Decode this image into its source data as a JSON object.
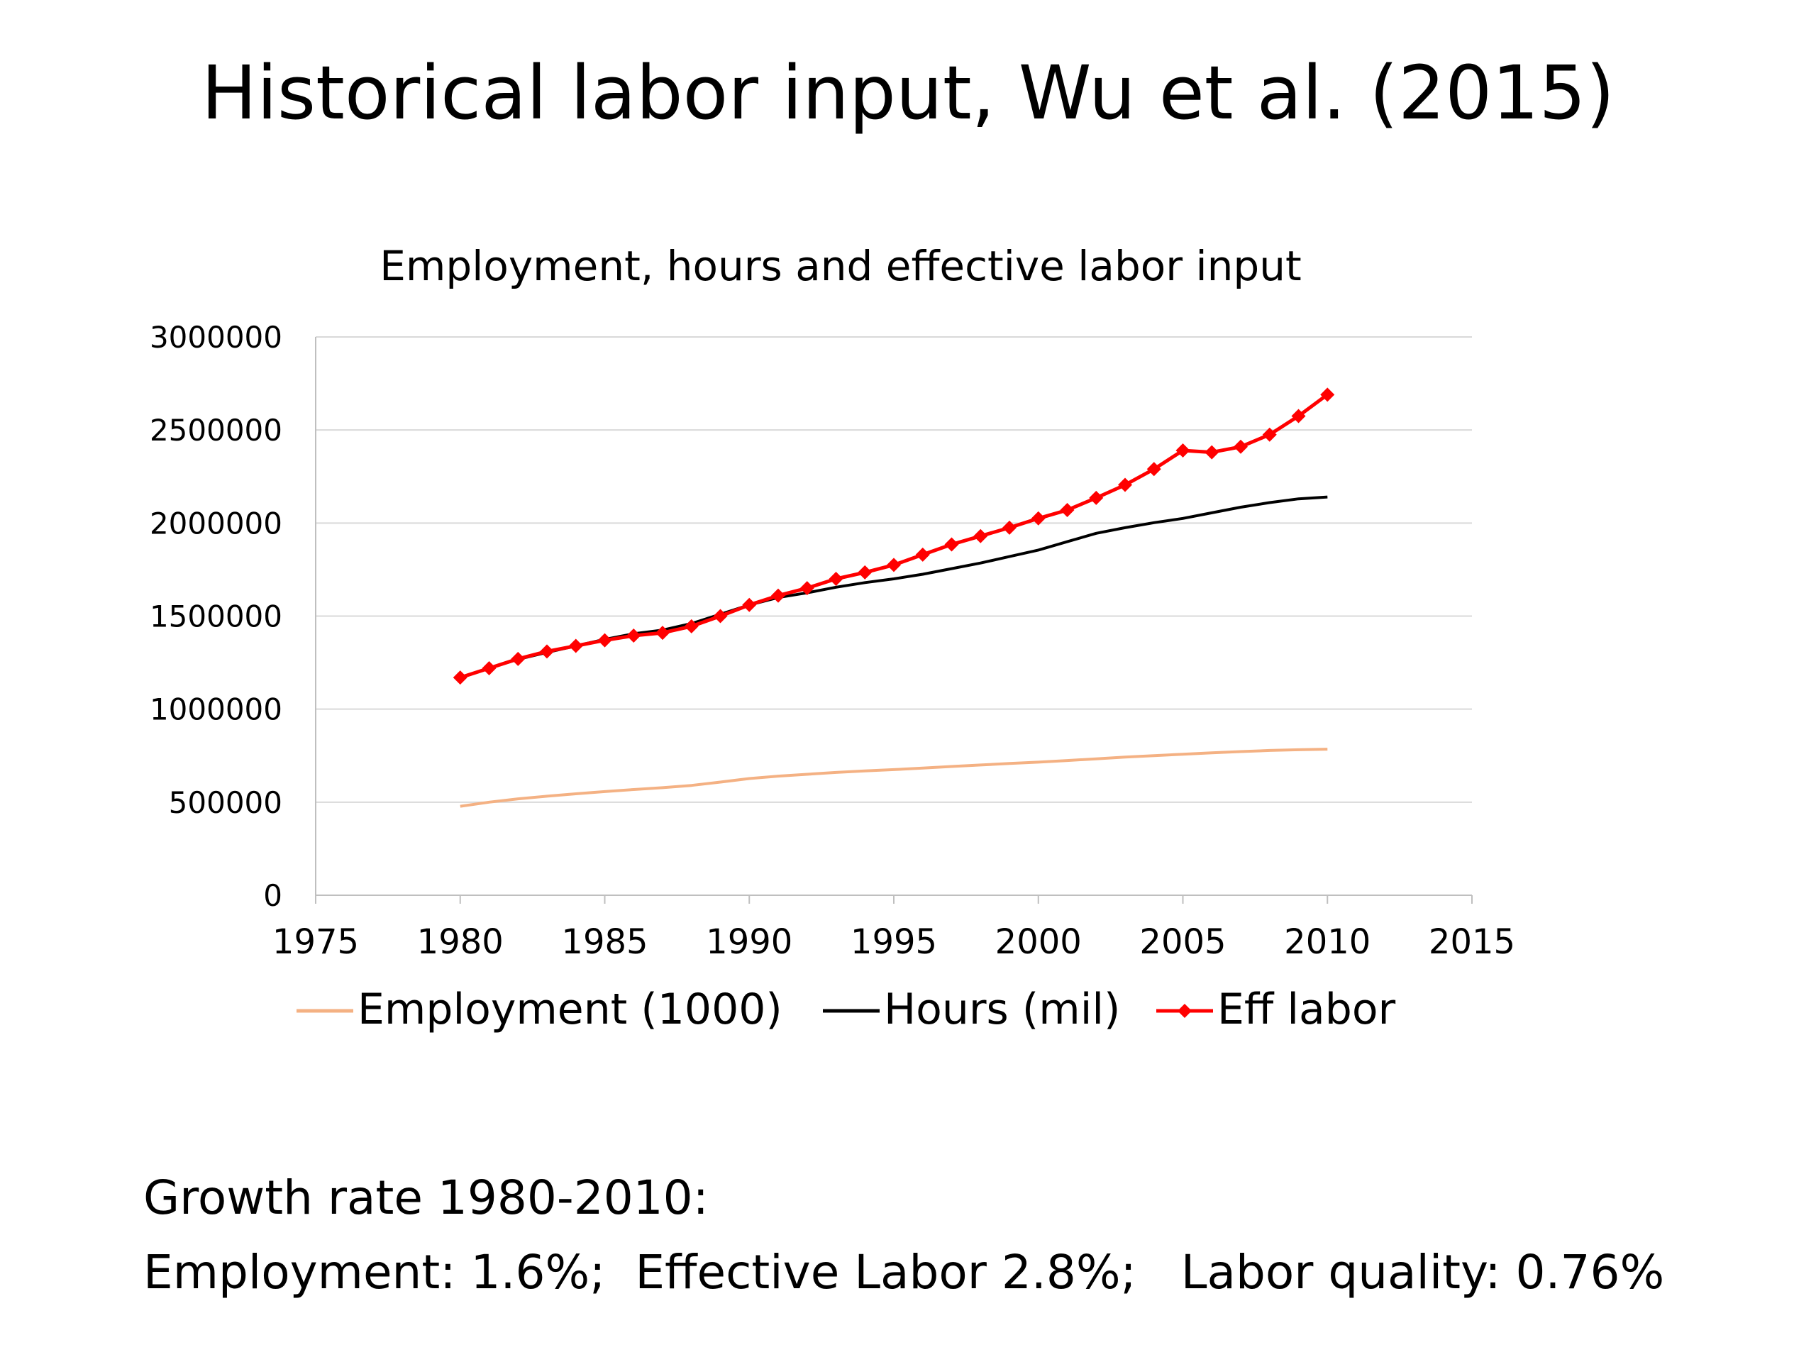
{
  "slide": {
    "title": "Historical labor input, Wu et al. (2015)",
    "note_line1": "Growth rate 1980-2010:",
    "note_line2": "Employment: 1.6%;  Effective Labor 2.8%;   Labor quality: 0.76%"
  },
  "chart_data": {
    "type": "line",
    "title": "Employment, hours and effective labor input",
    "xlabel": "",
    "ylabel": "",
    "xlim": [
      1975,
      2015
    ],
    "ylim": [
      0,
      3000000
    ],
    "x_ticks": [
      1975,
      1980,
      1985,
      1990,
      1995,
      2000,
      2005,
      2010,
      2015
    ],
    "y_ticks": [
      0,
      500000,
      1000000,
      1500000,
      2000000,
      2500000,
      3000000
    ],
    "grid": "horizontal",
    "legend_position": "bottom",
    "x": [
      1980,
      1981,
      1982,
      1983,
      1984,
      1985,
      1986,
      1987,
      1988,
      1989,
      1990,
      1991,
      1992,
      1993,
      1994,
      1995,
      1996,
      1997,
      1998,
      1999,
      2000,
      2001,
      2002,
      2003,
      2004,
      2005,
      2006,
      2007,
      2008,
      2009,
      2010
    ],
    "series": [
      {
        "name": "Employment (1000)",
        "color": "#f4b183",
        "marker": "none",
        "values": [
          478000,
          500000,
          518000,
          532000,
          545000,
          557000,
          568000,
          578000,
          590000,
          608000,
          627000,
          640000,
          650000,
          660000,
          668000,
          675000,
          683000,
          692000,
          700000,
          708000,
          715000,
          724000,
          733000,
          742000,
          750000,
          758000,
          765000,
          772000,
          778000,
          782000,
          785000
        ]
      },
      {
        "name": "Hours (mil)",
        "color": "#000000",
        "marker": "none",
        "values": [
          1170000,
          1220000,
          1268000,
          1305000,
          1340000,
          1375000,
          1405000,
          1425000,
          1460000,
          1510000,
          1560000,
          1600000,
          1625000,
          1655000,
          1680000,
          1700000,
          1725000,
          1755000,
          1785000,
          1820000,
          1855000,
          1900000,
          1945000,
          1975000,
          2002000,
          2025000,
          2055000,
          2085000,
          2110000,
          2130000,
          2140000
        ]
      },
      {
        "name": "Eff labor",
        "color": "#ff0000",
        "marker": "diamond",
        "values": [
          1170000,
          1220000,
          1270000,
          1310000,
          1340000,
          1370000,
          1395000,
          1410000,
          1445000,
          1500000,
          1560000,
          1610000,
          1650000,
          1700000,
          1735000,
          1775000,
          1830000,
          1885000,
          1930000,
          1975000,
          2025000,
          2070000,
          2135000,
          2205000,
          2290000,
          2390000,
          2380000,
          2410000,
          2475000,
          2575000,
          2690000
        ]
      }
    ]
  }
}
